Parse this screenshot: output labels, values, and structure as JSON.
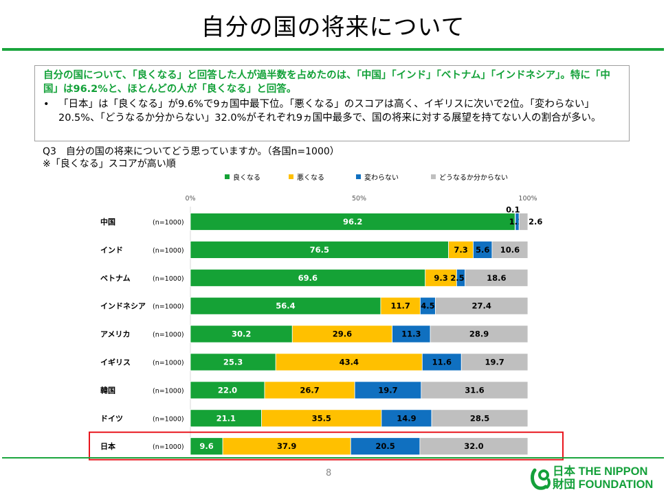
{
  "page": {
    "title": "自分の国の将来について",
    "page_number": "8"
  },
  "summary": {
    "headline": "自分の国について、「良くなる」と回答した人が過半数を占めたのは、「中国」「インド」「ベトナム」「インドネシア」。特に「中国」は96.2%と、ほとんどの人が「良くなる」と回答。",
    "bullet_mark": "•",
    "bullet": "「日本」は「良くなる」が9.6%で9ヵ国中最下位。「悪くなる」のスコアは高く、イギリスに次いで2位。「変わらない」20.5%、「どうなるか分からない」32.0%がそれぞれ9ヵ国中最多で、国の将来に対する展望を持てない人の割合が多い。"
  },
  "question": {
    "line1": "Q3　自分の国の将来についてどう思っていますか。（各国n=1000）",
    "line2": "※「良くなる」スコアが高い順"
  },
  "logo": {
    "line1": "日本 THE NIPPON",
    "line2": "財団 FOUNDATION"
  },
  "colors": {
    "accent": "#1aa53d",
    "highlight": "#e8141c"
  },
  "chart_data": {
    "type": "bar",
    "orientation": "horizontal-stacked-100",
    "xlim": [
      0,
      100
    ],
    "tick_labels": [
      "0%",
      "50%",
      "100%"
    ],
    "ticks": [
      0,
      50,
      100
    ],
    "legend_position": "top",
    "series": [
      {
        "name": "良くなる",
        "color": "#15a236",
        "text_color": "#ffffff",
        "values": [
          96.2,
          76.5,
          69.6,
          56.4,
          30.2,
          25.3,
          22.0,
          21.1,
          9.6
        ]
      },
      {
        "name": "悪くなる",
        "color": "#ffc000",
        "text_color": "#000000",
        "values": [
          0.1,
          7.3,
          9.3,
          11.7,
          29.6,
          43.4,
          26.7,
          35.5,
          37.9
        ]
      },
      {
        "name": "変わらない",
        "color": "#1070c0",
        "text_color": "#000000",
        "values": [
          1.1,
          5.6,
          2.5,
          4.5,
          11.3,
          11.6,
          19.7,
          14.9,
          20.5
        ]
      },
      {
        "name": "どうなるか分からない",
        "color": "#bfbfbf",
        "text_color": "#000000",
        "values": [
          2.6,
          10.6,
          18.6,
          27.4,
          28.9,
          19.7,
          31.6,
          28.5,
          32.0
        ]
      }
    ],
    "categories": [
      "中国",
      "インド",
      "ベトナム",
      "インドネシア",
      "アメリカ",
      "イギリス",
      "韓国",
      "ドイツ",
      "日本"
    ],
    "n_labels": [
      "(n=1000)",
      "(n=1000)",
      "(n=1000)",
      "(n=1000)",
      "(n=1000)",
      "(n=1000)",
      "(n=1000)",
      "(n=1000)",
      "(n=1000)"
    ],
    "highlighted_category": "日本"
  }
}
